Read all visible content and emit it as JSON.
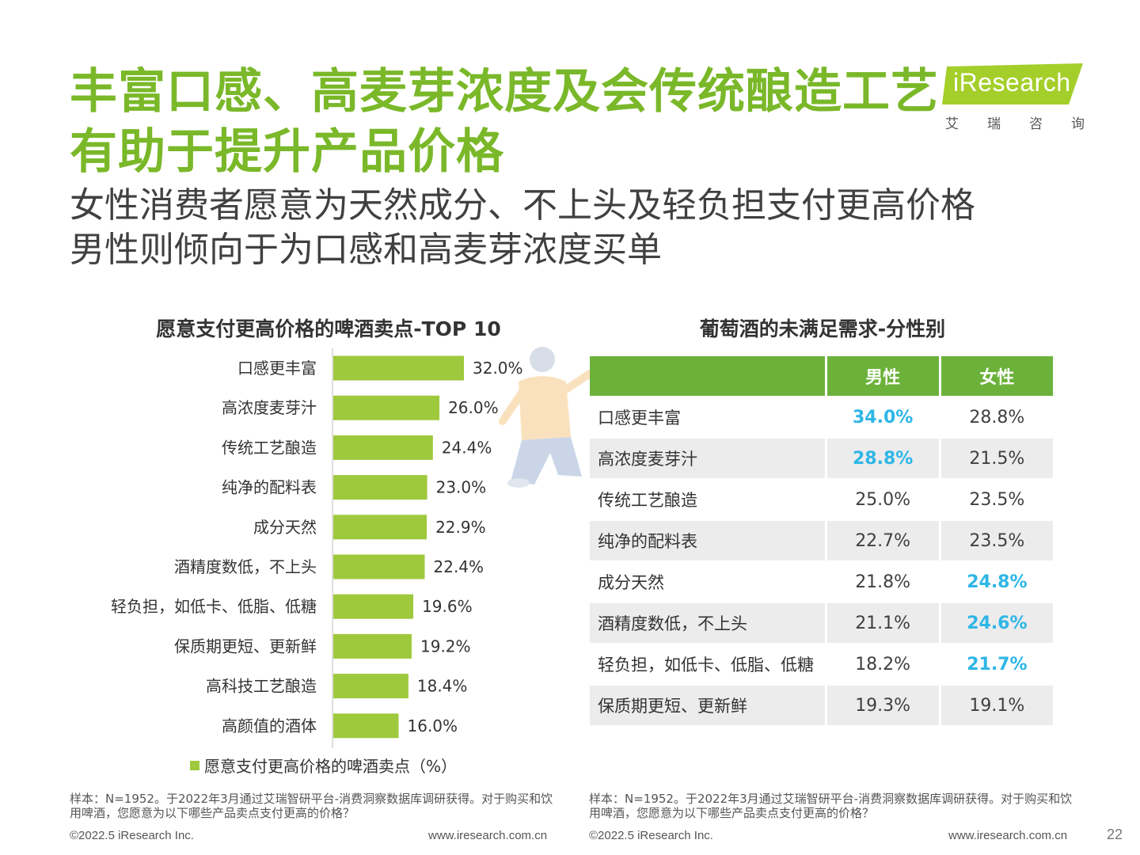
{
  "title": "丰富口感、高麦芽浓度及会传统酿造工艺有助于提升产品价格",
  "subtitle": {
    "line1": "女性消费者愿意为天然成分、不上头及轻负担支付更高价格",
    "line2": "男性则倾向于为口感和高麦芽浓度买单"
  },
  "logo": {
    "text": "iResearch",
    "cn": [
      "艾",
      "瑞",
      "咨",
      "询"
    ],
    "colors": {
      "badge": "#a4cf2b"
    }
  },
  "chart_data": [
    {
      "type": "bar",
      "orientation": "horizontal",
      "title": "愿意支付更高价格的啤酒卖点-TOP 10",
      "categories": [
        "口感更丰富",
        "高浓度麦芽汁",
        "传统工艺酿造",
        "纯净的配料表",
        "成分天然",
        "酒精度数低，不上头",
        "轻负担，如低卡、低脂、低糖",
        "保质期更短、更新鲜",
        "高科技工艺酿造",
        "高颜值的酒体"
      ],
      "values": [
        32.0,
        26.0,
        24.4,
        23.0,
        22.9,
        22.4,
        19.6,
        19.2,
        18.4,
        16.0
      ],
      "value_labels": [
        "32.0%",
        "26.0%",
        "24.4%",
        "23.0%",
        "22.9%",
        "22.4%",
        "19.6%",
        "19.2%",
        "18.4%",
        "16.0%"
      ],
      "series": [
        {
          "name": "愿意支付更高价格的啤酒卖点（%）",
          "color": "#9fc93c"
        }
      ],
      "legend": "bottom",
      "xlim": [
        0,
        40
      ]
    },
    {
      "type": "table",
      "title": "葡萄酒的未满足需求-分性别",
      "columns": [
        "",
        "男性",
        "女性"
      ],
      "rows": [
        {
          "label": "口感更丰富",
          "male": "34.0%",
          "female": "28.8%",
          "highlight": "male"
        },
        {
          "label": "高浓度麦芽汁",
          "male": "28.8%",
          "female": "21.5%",
          "highlight": "male"
        },
        {
          "label": "传统工艺酿造",
          "male": "25.0%",
          "female": "23.5%",
          "highlight": ""
        },
        {
          "label": "纯净的配料表",
          "male": "22.7%",
          "female": "23.5%",
          "highlight": ""
        },
        {
          "label": "成分天然",
          "male": "21.8%",
          "female": "24.8%",
          "highlight": "female"
        },
        {
          "label": "酒精度数低，不上头",
          "male": "21.1%",
          "female": "24.6%",
          "highlight": "female"
        },
        {
          "label": "轻负担，如低卡、低脂、低糖",
          "male": "18.2%",
          "female": "21.7%",
          "highlight": "female"
        },
        {
          "label": "保质期更短、更新鲜",
          "male": "19.3%",
          "female": "19.1%",
          "highlight": ""
        }
      ],
      "colors": {
        "header": "#6cb23a",
        "highlight": "#2eb6e6"
      }
    }
  ],
  "notes": {
    "left": "样本：N=1952。于2022年3月通过艾瑞智研平台-消费洞察数据库调研获得。对于购买和饮用啤酒，您愿意为以下哪些产品卖点支付更高的价格？",
    "right": "样本：N=1952。于2022年3月通过艾瑞智研平台-消费洞察数据库调研获得。对于购买和饮用啤酒，您愿意为以下哪些产品卖点支付更高的价格？"
  },
  "footer": {
    "copyright": "©2022.5 iResearch Inc.",
    "url": "www.iresearch.com.cn",
    "page": "22"
  }
}
